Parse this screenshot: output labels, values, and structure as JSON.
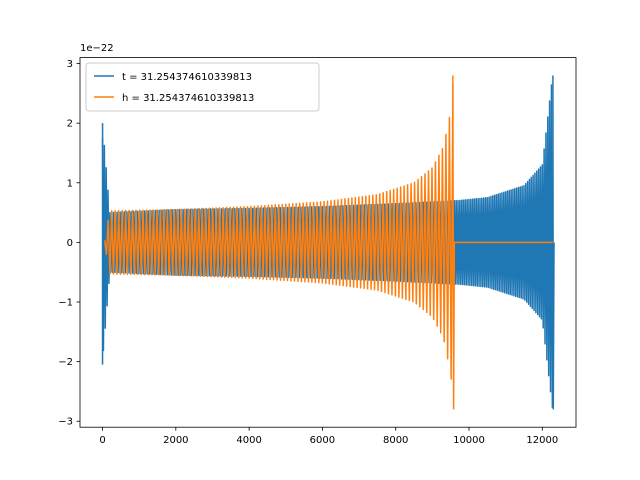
{
  "chart_data": {
    "type": "line",
    "title": "",
    "xlabel": "",
    "ylabel": "",
    "y_offset_label": "1e−22",
    "xlim": [
      -615,
      12920
    ],
    "ylim": [
      -3.1,
      3.1
    ],
    "x_ticks": [
      0,
      2000,
      4000,
      6000,
      8000,
      10000,
      12000
    ],
    "x_tick_labels": [
      "0",
      "2000",
      "4000",
      "6000",
      "8000",
      "10000",
      "12000"
    ],
    "y_ticks": [
      -3,
      -2,
      -1,
      0,
      1,
      2,
      3
    ],
    "y_tick_labels": [
      "−3",
      "−2",
      "−1",
      "0",
      "1",
      "2",
      "3"
    ],
    "grid": false,
    "legend_position": "top-left",
    "series": [
      {
        "name": "t = 31.254374610339813",
        "color": "#1f77b4",
        "description_points": {
          "x": [
            0,
            200,
            2000,
            4000,
            6000,
            8000,
            9000,
            9600,
            9700,
            10500,
            11500,
            12000,
            12280,
            12320
          ],
          "amplitude": [
            2.0,
            0.5,
            0.55,
            0.57,
            0.6,
            0.65,
            0.68,
            0.7,
            0.7,
            0.75,
            0.95,
            1.3,
            2.8,
            0.0
          ]
        }
      },
      {
        "name": "h = 31.254374610339813",
        "color": "#ff7f0e",
        "description_points": {
          "x": [
            50,
            200,
            2000,
            4000,
            6000,
            7500,
            8500,
            9000,
            9300,
            9500,
            9580,
            9620,
            12300
          ],
          "amplitude": [
            0.0,
            0.53,
            0.55,
            0.6,
            0.68,
            0.8,
            1.0,
            1.25,
            1.6,
            2.2,
            2.8,
            0.0,
            0.0
          ]
        }
      }
    ]
  }
}
